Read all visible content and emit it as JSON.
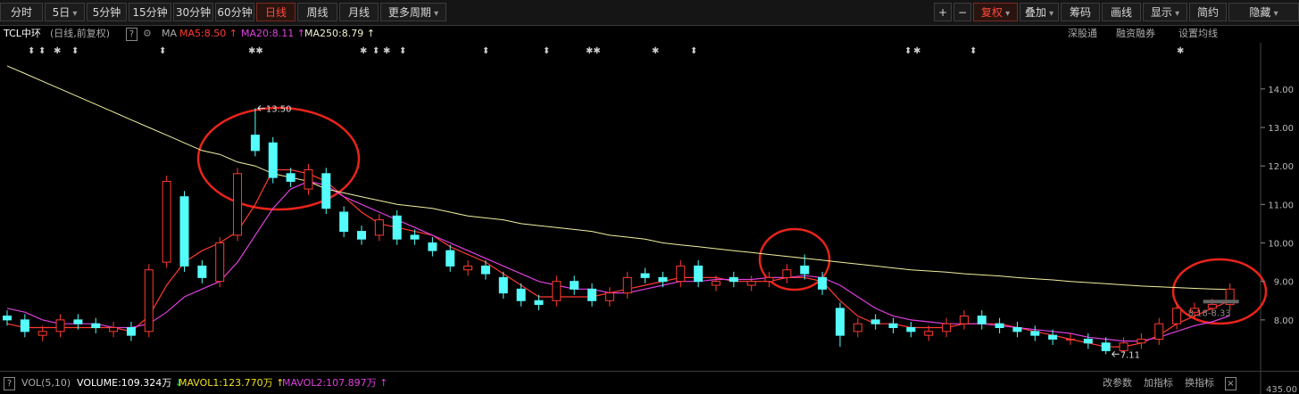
{
  "toolbar": {
    "left": [
      "分时",
      "5日",
      "5分钟",
      "15分钟",
      "30分钟",
      "60分钟",
      "日线",
      "周线",
      "月线",
      "更多周期"
    ],
    "right": [
      "+",
      "−",
      "复权",
      "叠加",
      "筹码",
      "画线",
      "显示",
      "简约",
      "隐藏"
    ]
  },
  "info": {
    "name": "TCL中环",
    "period": "(日线,前复权)",
    "help": "?",
    "ma": "MA",
    "ma_labels": [
      "MA5:8.50",
      "MA20:8.11",
      "MA250:8.79"
    ],
    "links": [
      "深股通",
      "融资融券",
      "设置均线"
    ]
  },
  "volume_bar": {
    "help": "?",
    "name": "VOL(5,10)",
    "labels": [
      "VOLUME:109.324万",
      "MAVOL1:123.770万",
      "MAVOL2:107.897万"
    ],
    "links": [
      "改参数",
      "加指标",
      "换指标"
    ],
    "close": "×",
    "axis_label": "435.00"
  },
  "chart_data": {
    "type": "candlestick",
    "open": [
      8.1,
      8.0,
      7.6,
      7.7,
      8.0,
      7.9,
      7.7,
      7.8,
      7.7,
      9.5,
      11.2,
      9.4,
      9.0,
      10.2,
      12.8,
      12.6,
      11.8,
      11.4,
      11.8,
      10.8,
      10.3,
      10.2,
      10.7,
      10.2,
      10.0,
      9.8,
      9.3,
      9.4,
      9.1,
      8.8,
      8.5,
      8.5,
      9.0,
      8.8,
      8.5,
      8.7,
      9.2,
      9.1,
      9.0,
      9.4,
      8.9,
      9.1,
      8.9,
      9.0,
      9.1,
      9.4,
      9.1,
      8.3,
      7.7,
      8.0,
      7.9,
      7.8,
      7.6,
      7.7,
      7.9,
      8.1,
      7.9,
      7.8,
      7.7,
      7.6,
      7.5,
      7.5,
      7.4,
      7.2,
      7.4,
      7.5,
      7.9,
      8.2,
      8.3,
      8.4
    ],
    "high": [
      8.25,
      8.15,
      7.85,
      8.15,
      8.15,
      8.05,
      7.95,
      7.95,
      9.45,
      11.75,
      11.35,
      9.55,
      10.15,
      11.95,
      13.5,
      12.75,
      11.95,
      12.05,
      11.95,
      10.95,
      10.45,
      10.75,
      10.85,
      10.35,
      10.15,
      9.95,
      9.55,
      9.55,
      9.25,
      8.95,
      8.65,
      9.15,
      9.15,
      8.95,
      8.85,
      9.25,
      9.35,
      9.25,
      9.55,
      9.55,
      9.15,
      9.25,
      9.15,
      9.25,
      9.45,
      9.7,
      9.25,
      8.45,
      8.05,
      8.15,
      8.05,
      7.95,
      7.85,
      8.05,
      8.25,
      8.25,
      8.05,
      7.95,
      7.85,
      7.75,
      7.65,
      7.65,
      7.55,
      7.55,
      7.65,
      8.05,
      8.45,
      8.45,
      8.55,
      8.95
    ],
    "low": [
      7.85,
      7.55,
      7.45,
      7.55,
      7.75,
      7.65,
      7.55,
      7.45,
      7.55,
      9.35,
      9.25,
      8.95,
      8.85,
      10.05,
      12.25,
      11.55,
      11.45,
      11.25,
      10.75,
      10.15,
      9.95,
      10.05,
      9.95,
      9.95,
      9.65,
      9.25,
      9.15,
      9.05,
      8.55,
      8.35,
      8.25,
      8.35,
      8.65,
      8.35,
      8.35,
      8.55,
      8.95,
      8.85,
      8.85,
      8.85,
      8.75,
      8.85,
      8.75,
      8.85,
      8.95,
      9.05,
      8.65,
      7.3,
      7.55,
      7.75,
      7.65,
      7.55,
      7.45,
      7.55,
      7.75,
      7.75,
      7.65,
      7.55,
      7.45,
      7.35,
      7.35,
      7.25,
      7.11,
      7.15,
      7.25,
      7.35,
      7.75,
      8.05,
      8.15,
      8.25
    ],
    "close": [
      8.0,
      7.7,
      7.7,
      8.0,
      7.9,
      7.8,
      7.8,
      7.6,
      9.3,
      11.6,
      9.4,
      9.1,
      10.0,
      11.8,
      12.4,
      11.7,
      11.6,
      11.9,
      10.9,
      10.3,
      10.1,
      10.6,
      10.1,
      10.1,
      9.8,
      9.4,
      9.4,
      9.2,
      8.7,
      8.5,
      8.4,
      9.0,
      8.8,
      8.5,
      8.7,
      9.1,
      9.1,
      9.0,
      9.4,
      9.0,
      9.0,
      9.0,
      9.0,
      9.1,
      9.3,
      9.2,
      8.8,
      7.6,
      7.9,
      7.9,
      7.8,
      7.7,
      7.7,
      7.9,
      8.1,
      7.9,
      7.8,
      7.7,
      7.6,
      7.5,
      7.5,
      7.4,
      7.2,
      7.4,
      7.5,
      7.9,
      8.3,
      8.3,
      8.4,
      8.8
    ],
    "up_color": "#ff3b30",
    "down_color": "#54fcfc",
    "series": [
      {
        "name": "MA5",
        "color": "#ff3b30",
        "values": [
          7.9,
          7.8,
          7.8,
          7.8,
          7.8,
          7.8,
          7.8,
          7.7,
          8.1,
          8.9,
          9.5,
          9.8,
          10.0,
          10.3,
          11.0,
          11.9,
          11.9,
          11.8,
          11.6,
          11.2,
          10.8,
          10.5,
          10.4,
          10.3,
          10.2,
          9.9,
          9.7,
          9.5,
          9.2,
          8.9,
          8.6,
          8.6,
          8.6,
          8.6,
          8.7,
          8.8,
          8.9,
          9.0,
          9.1,
          9.1,
          9.1,
          9.0,
          9.0,
          9.0,
          9.1,
          9.1,
          9.0,
          8.5,
          8.1,
          7.9,
          7.9,
          7.8,
          7.8,
          7.8,
          7.9,
          7.9,
          7.9,
          7.8,
          7.7,
          7.6,
          7.5,
          7.4,
          7.3,
          7.3,
          7.4,
          7.6,
          7.9,
          8.1,
          8.3,
          8.5
        ]
      },
      {
        "name": "MA20",
        "color": "#e040e0",
        "values": [
          8.3,
          8.2,
          8.0,
          7.9,
          7.9,
          7.9,
          7.8,
          7.8,
          7.9,
          8.2,
          8.6,
          8.8,
          9.0,
          9.5,
          10.2,
          10.9,
          11.4,
          11.6,
          11.5,
          11.2,
          11.0,
          10.8,
          10.6,
          10.4,
          10.2,
          10.0,
          9.8,
          9.6,
          9.4,
          9.2,
          9.0,
          8.9,
          8.8,
          8.8,
          8.7,
          8.7,
          8.8,
          8.9,
          9.0,
          9.0,
          9.05,
          9.05,
          9.05,
          9.1,
          9.1,
          9.15,
          9.1,
          8.9,
          8.6,
          8.3,
          8.1,
          8.0,
          7.95,
          7.9,
          7.9,
          7.9,
          7.85,
          7.8,
          7.75,
          7.7,
          7.65,
          7.55,
          7.5,
          7.45,
          7.45,
          7.55,
          7.7,
          7.85,
          7.95,
          8.11
        ]
      },
      {
        "name": "MA250",
        "color": "#f2f0a0",
        "values": [
          14.6,
          14.4,
          14.2,
          14.0,
          13.8,
          13.6,
          13.4,
          13.2,
          13.0,
          12.8,
          12.6,
          12.4,
          12.3,
          12.1,
          12.0,
          11.8,
          11.7,
          11.6,
          11.4,
          11.3,
          11.2,
          11.1,
          11.0,
          10.95,
          10.9,
          10.8,
          10.7,
          10.65,
          10.6,
          10.5,
          10.45,
          10.4,
          10.35,
          10.3,
          10.2,
          10.15,
          10.1,
          10.0,
          9.95,
          9.9,
          9.85,
          9.8,
          9.75,
          9.7,
          9.65,
          9.6,
          9.55,
          9.5,
          9.45,
          9.4,
          9.35,
          9.3,
          9.27,
          9.24,
          9.2,
          9.17,
          9.14,
          9.1,
          9.07,
          9.04,
          9.0,
          8.97,
          8.94,
          8.91,
          8.88,
          8.86,
          8.84,
          8.82,
          8.8,
          8.79
        ]
      }
    ],
    "ylim": [
      6.7,
      15.2
    ],
    "yticks": [
      {
        "value": 8,
        "label": "8.00"
      },
      {
        "value": 9,
        "label": "9.00"
      },
      {
        "value": 10,
        "label": "10.00"
      },
      {
        "value": 11,
        "label": "11.00"
      },
      {
        "value": 12,
        "label": "12.00"
      },
      {
        "value": 13,
        "label": "13.00"
      },
      {
        "value": 14,
        "label": "14.00"
      }
    ],
    "grid": false,
    "high_label": "13.50",
    "low_label": "7.11",
    "range_label": "8.18-8.33"
  }
}
